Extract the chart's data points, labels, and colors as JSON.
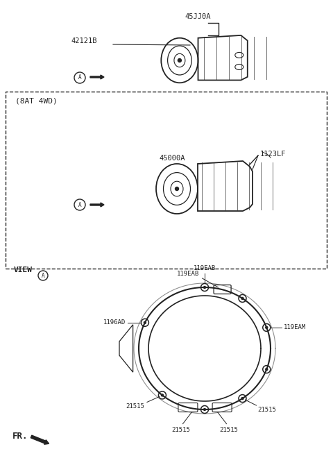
{
  "bg_color": "#ffffff",
  "line_color": "#222222",
  "fig_width": 4.8,
  "fig_height": 6.57,
  "dpi": 100,
  "top_label": "45JJ0A",
  "top_part_label": "42121B",
  "mid_section_label": "(8AT 4WD)",
  "mid_label1": "45000A",
  "mid_label2": "1123LF",
  "view_label": "VIEW",
  "view_circle_label": "A",
  "ring_labels": {
    "top": "119EAB",
    "upper_left": "119EAB",
    "left": "1196AD",
    "right": "119EAM",
    "lower_left": "21515",
    "lower_right": "21515",
    "bottom_left": "21515",
    "bottom_right": "21515"
  },
  "fr_label": "FR."
}
